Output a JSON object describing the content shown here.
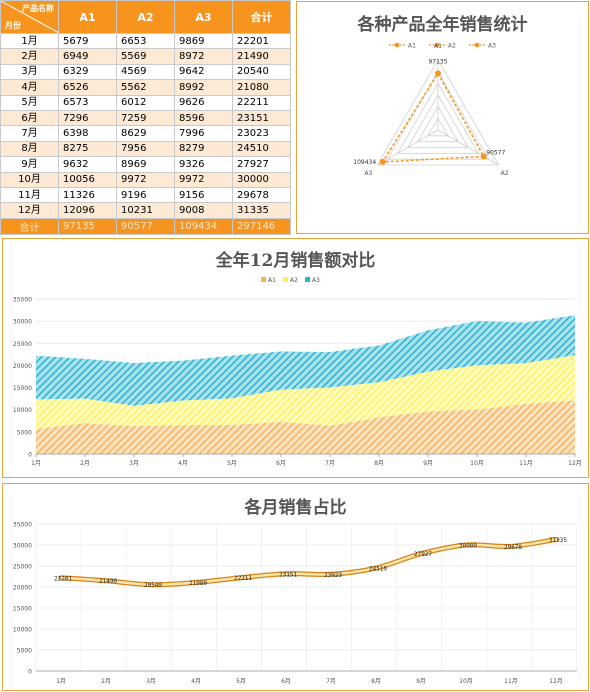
{
  "table": {
    "corner_top": "产品名称",
    "corner_bottom": "月份",
    "headers": [
      "A1",
      "A2",
      "A3",
      "合计"
    ],
    "rows": [
      [
        "1月",
        "5679",
        "6653",
        "9869",
        "22201"
      ],
      [
        "2月",
        "6949",
        "5569",
        "8972",
        "21490"
      ],
      [
        "3月",
        "6329",
        "4569",
        "9642",
        "20540"
      ],
      [
        "4月",
        "6526",
        "5562",
        "8992",
        "21080"
      ],
      [
        "5月",
        "6573",
        "6012",
        "9626",
        "22211"
      ],
      [
        "6月",
        "7296",
        "7259",
        "8596",
        "23151"
      ],
      [
        "7月",
        "6398",
        "8629",
        "7996",
        "23023"
      ],
      [
        "8月",
        "8275",
        "7956",
        "8279",
        "24510"
      ],
      [
        "9月",
        "9632",
        "8969",
        "9326",
        "27927"
      ],
      [
        "10月",
        "10056",
        "9972",
        "9972",
        "30000"
      ],
      [
        "11月",
        "11326",
        "9196",
        "9156",
        "29678"
      ],
      [
        "12月",
        "12096",
        "10231",
        "9008",
        "31335"
      ]
    ],
    "total": [
      "合计",
      "97135",
      "90577",
      "109434",
      "297146"
    ]
  },
  "colors": {
    "orange": "#f7941d",
    "area_a1": "#f5b35b",
    "area_a2": "#fbf35a",
    "area_a3": "#28b4cf",
    "line": "#f0a830"
  },
  "chart_data": [
    {
      "type": "radar",
      "title": "各种产品全年销售统计",
      "categories": [
        "A1",
        "A2",
        "A3"
      ],
      "series": [
        {
          "values": [
            97135,
            90577,
            109434
          ]
        }
      ],
      "legend": [
        "A1",
        "A2",
        "A3"
      ],
      "legend_position": "top"
    },
    {
      "type": "area",
      "stacked": true,
      "title": "全年12月销售额对比",
      "categories": [
        "1月",
        "2月",
        "3月",
        "4月",
        "5月",
        "6月",
        "7月",
        "8月",
        "9月",
        "10月",
        "11月",
        "12月"
      ],
      "series": [
        {
          "name": "A1",
          "values": [
            5679,
            6949,
            6329,
            6526,
            6573,
            7296,
            6398,
            8275,
            9632,
            10056,
            11326,
            12096
          ]
        },
        {
          "name": "A2",
          "values": [
            6653,
            5569,
            4569,
            5562,
            6012,
            7259,
            8629,
            7956,
            8969,
            9972,
            9196,
            10231
          ]
        },
        {
          "name": "A3",
          "values": [
            9869,
            8972,
            9642,
            8992,
            9626,
            8596,
            7996,
            8279,
            9326,
            9972,
            9156,
            9008
          ]
        }
      ],
      "ylim": [
        0,
        35000
      ],
      "yticks": [
        "0",
        "5000",
        "10000",
        "15000",
        "20000",
        "25000",
        "30000",
        "35000"
      ],
      "grid": true,
      "legend_position": "top"
    },
    {
      "type": "line",
      "title": "各月销售占比",
      "categories": [
        "1月",
        "2月",
        "3月",
        "4月",
        "5月",
        "6月",
        "7月",
        "8月",
        "9月",
        "10月",
        "11月",
        "12月"
      ],
      "values": [
        22201,
        21490,
        20540,
        21080,
        22211,
        23151,
        23023,
        24510,
        27927,
        30000,
        29678,
        31335
      ],
      "ylim": [
        0,
        35000
      ],
      "yticks": [
        "0",
        "5000",
        "10000",
        "15000",
        "20000",
        "25000",
        "30000",
        "35000"
      ],
      "grid": true
    }
  ]
}
